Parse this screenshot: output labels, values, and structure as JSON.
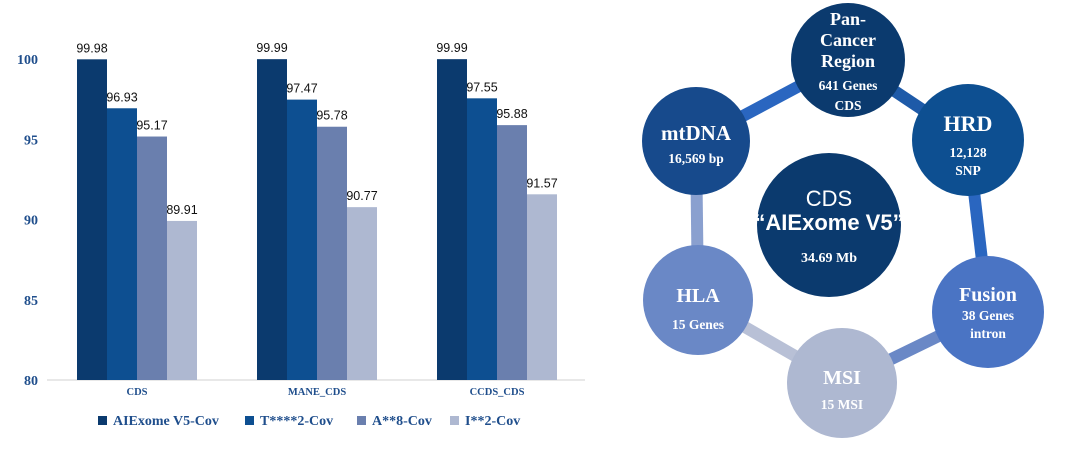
{
  "chart_data": {
    "type": "bar",
    "categories": [
      "CDS",
      "MANE_CDS",
      "CCDS_CDS"
    ],
    "series": [
      {
        "name": "AIExome V5-Cov",
        "values": [
          99.98,
          99.99,
          99.99
        ],
        "color": "#0b3a6e"
      },
      {
        "name": "T****2-Cov",
        "values": [
          96.93,
          97.47,
          97.55
        ],
        "color": "#0d4f91"
      },
      {
        "name": "A**8-Cov",
        "values": [
          95.17,
          95.78,
          95.88
        ],
        "color": "#6a7fae"
      },
      {
        "name": "I**2-Cov",
        "values": [
          89.91,
          90.77,
          91.57
        ],
        "color": "#aeb8d1"
      }
    ],
    "value_labels": [
      [
        "99.98",
        "99.99",
        "99.99"
      ],
      [
        "96.93",
        "97.47",
        "97.55"
      ],
      [
        "95.17",
        "95.78",
        "95.88"
      ],
      [
        "89.91",
        "90.77",
        "91.57"
      ]
    ],
    "ylim": [
      80,
      100
    ],
    "yticks": [
      "80",
      "85",
      "90",
      "95",
      "100"
    ],
    "title": "",
    "xlabel": "",
    "ylabel": "",
    "legend_position": "bottom",
    "grid": false
  },
  "diagram": {
    "center": {
      "title": "CDS",
      "subtitle": "“AIExome V5”",
      "detail": "34.69 Mb",
      "color": "#0b3a6e"
    },
    "nodes": [
      {
        "name": "Pan-Cancer Region",
        "lines": [
          "Pan-",
          "Cancer",
          "Region"
        ],
        "detail": [
          "641 Genes",
          "CDS"
        ],
        "color": "#0b3a6e"
      },
      {
        "name": "HRD",
        "lines": [
          "HRD"
        ],
        "detail": [
          "12,128",
          "SNP"
        ],
        "color": "#0d4f91"
      },
      {
        "name": "Fusion",
        "lines": [
          "Fusion"
        ],
        "detail": [
          "38 Genes",
          "intron"
        ],
        "color": "#4a74c4"
      },
      {
        "name": "MSI",
        "lines": [
          "MSI"
        ],
        "detail": [
          "15 MSI"
        ],
        "color": "#aeb8d1"
      },
      {
        "name": "HLA",
        "lines": [
          "HLA"
        ],
        "detail": [
          "15 Genes"
        ],
        "color": "#6a88c6"
      },
      {
        "name": "mtDNA",
        "lines": [
          "mtDNA"
        ],
        "detail": [
          "16,569 bp"
        ],
        "color": "#174a8c"
      }
    ],
    "ring_colors": [
      "#1e5aa8",
      "#2a66c0",
      "#6a88c6",
      "#b8c0d6",
      "#8aa0cf",
      "#2a66c0"
    ]
  }
}
